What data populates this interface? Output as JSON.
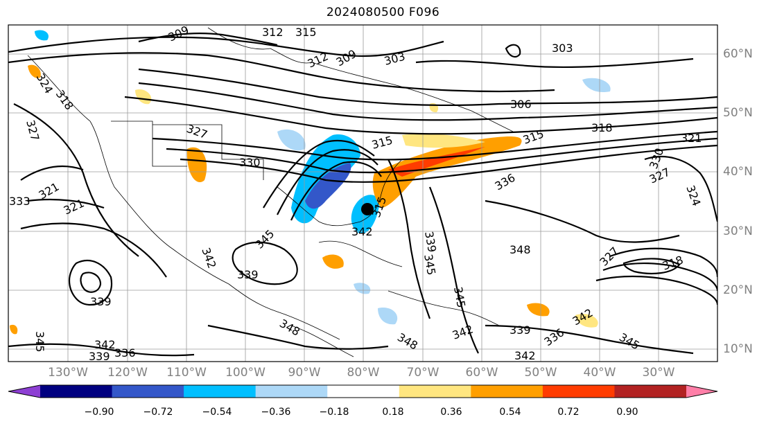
{
  "title": "2024080500 F096",
  "lon_labels": [
    "130°W",
    "120°W",
    "110°W",
    "100°W",
    "90°W",
    "80°W",
    "70°W",
    "60°W",
    "50°W",
    "40°W",
    "30°W"
  ],
  "lat_labels": [
    "60°N",
    "50°N",
    "40°N",
    "30°N",
    "20°N",
    "10°N"
  ],
  "contour_labels": [
    "312",
    "315",
    "309",
    "312",
    "309",
    "303",
    "303",
    "306",
    "327",
    "324",
    "318",
    "321",
    "327",
    "330",
    "333",
    "321",
    "315",
    "315",
    "318",
    "321",
    "327",
    "330",
    "336",
    "327",
    "324",
    "318",
    "315",
    "342",
    "345",
    "348",
    "339",
    "339",
    "345",
    "342",
    "339",
    "336",
    "342",
    "345",
    "342",
    "339",
    "336",
    "345",
    "342",
    "348",
    "348",
    "345",
    "342",
    "339"
  ],
  "colorbar": {
    "ticks": [
      "−0.90",
      "−0.72",
      "−0.54",
      "−0.36",
      "−0.18",
      "0.18",
      "0.36",
      "0.54",
      "0.72",
      "0.90"
    ],
    "colors": [
      "#8d3fd3",
      "#000080",
      "#3357c9",
      "#00bfff",
      "#add8f7",
      "#ffffff",
      "#ffe680",
      "#ff9f00",
      "#ff3c00",
      "#b22222",
      "#ff7fa8"
    ]
  },
  "marker": "black-circle"
}
